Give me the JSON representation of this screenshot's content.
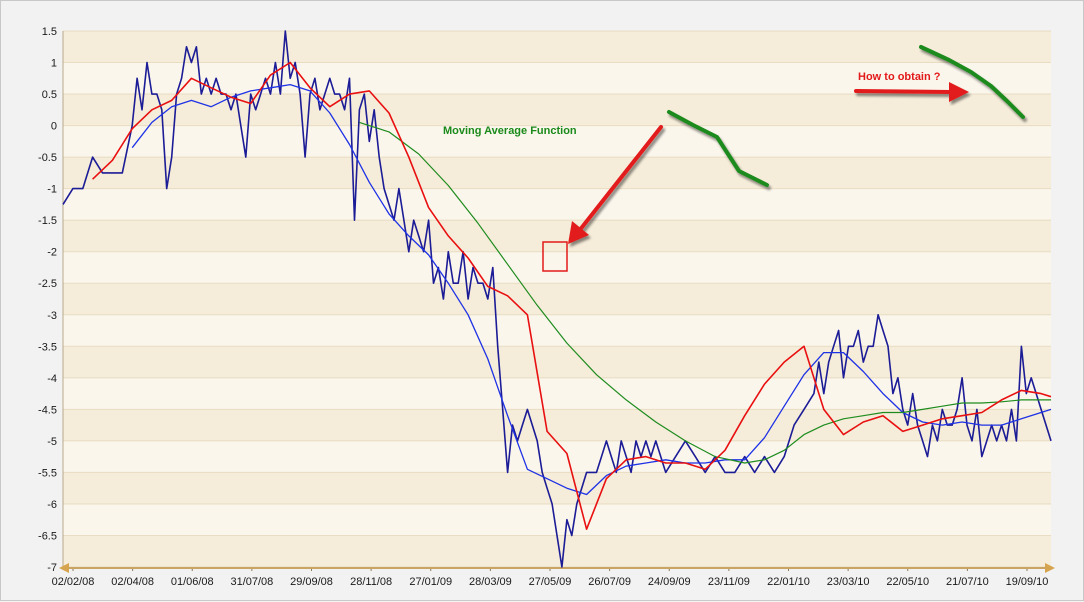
{
  "chart_data": {
    "type": "line",
    "title": "",
    "xlabel": "",
    "ylabel": "",
    "ylim": [
      -7,
      1.5
    ],
    "y_ticks": [
      "1.5",
      "1",
      "0.5",
      "0",
      "-0.5",
      "-1",
      "-1.5",
      "-2",
      "-2.5",
      "-3",
      "-3.5",
      "-4",
      "-4.5",
      "-5",
      "-5.5",
      "-6",
      "-6.5",
      "-7"
    ],
    "x_ticks": [
      "02/02/08",
      "02/04/08",
      "01/06/08",
      "31/07/08",
      "29/09/08",
      "28/11/08",
      "27/01/09",
      "28/03/09",
      "27/05/09",
      "26/07/09",
      "24/09/09",
      "23/11/09",
      "22/01/10",
      "23/03/10",
      "22/05/10",
      "21/07/10",
      "19/09/10"
    ],
    "grid": true,
    "legend": "none",
    "colors": {
      "raw": "#1c1c96",
      "ma_short": "#e81010",
      "ma_medium": "#1e32e6",
      "ma_long": "#1e8c1e",
      "arrow": "#e21a1a",
      "annotation_red": "#e21a1a",
      "annotation_green": "#1a8a1a",
      "band_light": "#fbf6ec",
      "band_dark": "#f5ecd9"
    },
    "x_index_range": [
      0,
      100
    ],
    "series": [
      {
        "key": "raw",
        "x": [
          0,
          1,
          2,
          3,
          4,
          5,
          6,
          7,
          7.5,
          8,
          8.5,
          9,
          9.5,
          10,
          10.5,
          11,
          11.5,
          12,
          12.5,
          13,
          13.5,
          14,
          14.5,
          15,
          15.5,
          16,
          16.5,
          17,
          17.5,
          18,
          18.5,
          19,
          19.5,
          20,
          20.5,
          21,
          21.5,
          22,
          22.5,
          23,
          23.5,
          24,
          24.5,
          25,
          25.5,
          26,
          26.5,
          27,
          27.5,
          28,
          28.5,
          29,
          29.5,
          30,
          30.5,
          31,
          31.5,
          32,
          32.5,
          33,
          33.5,
          34,
          34.5,
          35,
          35.5,
          36,
          36.5,
          37,
          37.5,
          38,
          38.5,
          39,
          39.5,
          40,
          40.5,
          41,
          41.5,
          42,
          42.5,
          43,
          43.5,
          44,
          44.5,
          45,
          45.5,
          46,
          46.5,
          47,
          47.5,
          48,
          48.5,
          49,
          49.5,
          50,
          50.5,
          51,
          51.5,
          52,
          52.5,
          53,
          53.5,
          54,
          54.5,
          55,
          55.5,
          56,
          56.5,
          57,
          57.5,
          58,
          58.5,
          59,
          59.5,
          60,
          61,
          62,
          63,
          64,
          65,
          66,
          67,
          68,
          69,
          70,
          71,
          72,
          73,
          74,
          75,
          76,
          76.5,
          77,
          77.5,
          78,
          78.5,
          79,
          79.5,
          80,
          80.5,
          81,
          81.5,
          82,
          82.5,
          83,
          83.5,
          84,
          84.5,
          85,
          85.5,
          86,
          86.5,
          87,
          87.5,
          88,
          88.5,
          89,
          89.5,
          90,
          90.5,
          91,
          91.5,
          92,
          92.5,
          93,
          93.5,
          94,
          94.5,
          95,
          95.5,
          96,
          96.5,
          97,
          97.5,
          98,
          98.5,
          99,
          100
        ],
        "y": [
          -1.25,
          -1.0,
          -1.0,
          -0.5,
          -0.75,
          -0.75,
          -0.75,
          0.0,
          0.75,
          0.25,
          1.0,
          0.5,
          0.5,
          0.25,
          -1.0,
          -0.5,
          0.5,
          0.75,
          1.25,
          1.0,
          1.25,
          0.5,
          0.75,
          0.5,
          0.75,
          0.5,
          0.5,
          0.25,
          0.5,
          0.0,
          -0.5,
          0.5,
          0.25,
          0.5,
          0.75,
          0.5,
          1.0,
          0.5,
          1.5,
          0.75,
          1.0,
          0.5,
          -0.5,
          0.5,
          0.75,
          0.25,
          0.5,
          0.75,
          0.5,
          0.5,
          0.25,
          0.75,
          -1.5,
          0.25,
          0.5,
          -0.25,
          0.25,
          -0.5,
          -1.0,
          -1.25,
          -1.5,
          -1.0,
          -1.5,
          -2.0,
          -1.5,
          -1.75,
          -2.0,
          -1.5,
          -2.5,
          -2.25,
          -2.75,
          -2.0,
          -2.5,
          -2.5,
          -2.0,
          -2.75,
          -2.25,
          -2.5,
          -2.5,
          -2.75,
          -2.25,
          -3.5,
          -4.5,
          -5.5,
          -4.75,
          -5.0,
          -4.75,
          -4.5,
          -4.75,
          -5.0,
          -5.5,
          -5.75,
          -6.0,
          -6.5,
          -7.0,
          -6.25,
          -6.5,
          -6.0,
          -5.75,
          -5.5,
          -5.5,
          -5.5,
          -5.25,
          -5.0,
          -5.25,
          -5.5,
          -5.0,
          -5.25,
          -5.5,
          -5.0,
          -5.25,
          -5.0,
          -5.25,
          -5.0,
          -5.5,
          -5.25,
          -5.0,
          -5.25,
          -5.5,
          -5.25,
          -5.5,
          -5.5,
          -5.25,
          -5.5,
          -5.25,
          -5.5,
          -5.25,
          -4.75,
          -4.5,
          -4.25,
          -3.75,
          -4.25,
          -3.75,
          -3.5,
          -3.25,
          -4.0,
          -3.5,
          -3.5,
          -3.25,
          -3.75,
          -3.5,
          -3.5,
          -3.0,
          -3.25,
          -3.5,
          -4.25,
          -4.0,
          -4.5,
          -4.75,
          -4.25,
          -4.75,
          -5.0,
          -5.25,
          -4.75,
          -5.0,
          -4.5,
          -4.75,
          -4.75,
          -4.5,
          -4.0,
          -4.75,
          -5.0,
          -4.5,
          -5.25,
          -5.0,
          -4.75,
          -5.0,
          -4.75,
          -5.0,
          -4.5,
          -5.0,
          -3.5,
          -4.25,
          -4.0,
          -4.25,
          -4.5,
          -5.0
        ]
      },
      {
        "key": "ma_short",
        "x": [
          3,
          5,
          7,
          9,
          11,
          13,
          15,
          17,
          19,
          21,
          23,
          25,
          27,
          29,
          31,
          33,
          35,
          37,
          39,
          41,
          43,
          45,
          47,
          49,
          51,
          53,
          55,
          57,
          59,
          61,
          63,
          65,
          67,
          69,
          71,
          73,
          75,
          77,
          79,
          81,
          83,
          85,
          87,
          89,
          91,
          93,
          95,
          97,
          99,
          100
        ],
        "y": [
          -0.85,
          -0.55,
          -0.05,
          0.25,
          0.4,
          0.75,
          0.6,
          0.45,
          0.35,
          0.8,
          1.0,
          0.6,
          0.3,
          0.5,
          0.55,
          0.2,
          -0.5,
          -1.3,
          -1.75,
          -2.1,
          -2.55,
          -2.7,
          -3.0,
          -4.85,
          -5.2,
          -6.4,
          -5.6,
          -5.3,
          -5.25,
          -5.35,
          -5.35,
          -5.45,
          -5.15,
          -4.6,
          -4.1,
          -3.75,
          -3.5,
          -4.5,
          -4.9,
          -4.7,
          -4.6,
          -4.85,
          -4.75,
          -4.65,
          -4.6,
          -4.55,
          -4.35,
          -4.2,
          -4.25,
          -4.3
        ]
      },
      {
        "key": "ma_medium",
        "x": [
          7,
          9,
          11,
          13,
          15,
          17,
          19,
          21,
          23,
          25,
          27,
          29,
          31,
          33,
          35,
          37,
          39,
          41,
          43,
          45,
          47,
          49,
          51,
          53,
          55,
          57,
          59,
          61,
          63,
          65,
          67,
          69,
          71,
          73,
          75,
          77,
          79,
          81,
          83,
          85,
          87,
          89,
          91,
          93,
          95,
          97,
          99,
          100
        ],
        "y": [
          -0.35,
          0.05,
          0.3,
          0.4,
          0.3,
          0.45,
          0.55,
          0.6,
          0.65,
          0.55,
          0.2,
          -0.3,
          -0.9,
          -1.4,
          -1.75,
          -2.05,
          -2.5,
          -3.0,
          -3.7,
          -4.6,
          -5.45,
          -5.6,
          -5.75,
          -5.85,
          -5.55,
          -5.4,
          -5.35,
          -5.3,
          -5.35,
          -5.35,
          -5.3,
          -5.3,
          -4.95,
          -4.45,
          -3.95,
          -3.6,
          -3.6,
          -3.9,
          -4.25,
          -4.55,
          -4.7,
          -4.75,
          -4.7,
          -4.75,
          -4.75,
          -4.65,
          -4.55,
          -4.5
        ]
      },
      {
        "key": "ma_long",
        "x": [
          30,
          33,
          36,
          39,
          42,
          45,
          48,
          51,
          54,
          57,
          60,
          63,
          66,
          69,
          71,
          73,
          75,
          77,
          79,
          81,
          83,
          85,
          87,
          89,
          91,
          93,
          95,
          97,
          99,
          100
        ],
        "y": [
          0.05,
          -0.1,
          -0.45,
          -0.95,
          -1.55,
          -2.2,
          -2.85,
          -3.45,
          -3.95,
          -4.35,
          -4.7,
          -5.0,
          -5.25,
          -5.35,
          -5.3,
          -5.15,
          -4.9,
          -4.75,
          -4.65,
          -4.6,
          -4.55,
          -4.55,
          -4.5,
          -4.45,
          -4.4,
          -4.4,
          -4.38,
          -4.35,
          -4.35,
          -4.35
        ]
      }
    ],
    "annotations": [
      {
        "key": "ma_label",
        "text": "Moving Average Function"
      },
      {
        "key": "question",
        "text": "How to obtain ?"
      }
    ]
  }
}
